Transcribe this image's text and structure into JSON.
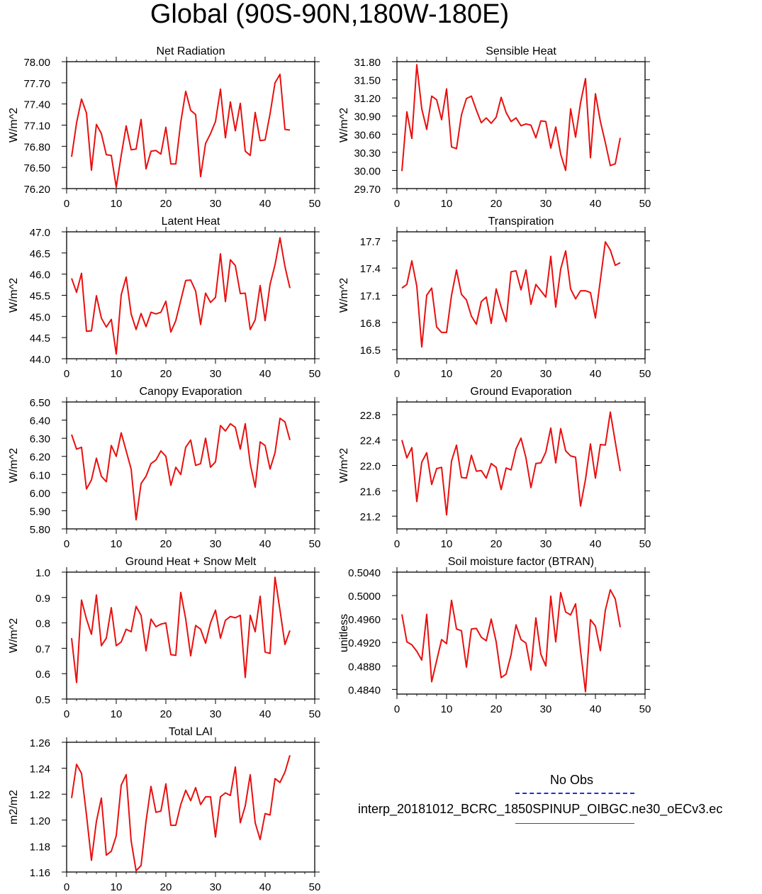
{
  "title": "Global (90S-90N,180W-180E)",
  "legend": {
    "obs_label": "No Obs",
    "model_label": "interp_20181012_BCRC_1850SPINUP_OIBGC.ne30_oECv3.ec",
    "obs_color": "#1f2fd6",
    "model_color": "#e8100f"
  },
  "chart_data": [
    {
      "type": "line",
      "title": "Net Radiation",
      "ylabel": "W/m^2",
      "xlim": [
        0,
        50
      ],
      "xticks": [
        "0",
        "10",
        "20",
        "30",
        "40",
        "50"
      ],
      "ylim": [
        76.2,
        78.0
      ],
      "yticks": [
        "76.20",
        "76.50",
        "76.80",
        "77.10",
        "77.40",
        "77.70",
        "78.00"
      ],
      "x": [
        1,
        2,
        3,
        4,
        5,
        6,
        7,
        8,
        9,
        10,
        11,
        12,
        13,
        14,
        15,
        16,
        17,
        18,
        19,
        20,
        21,
        22,
        23,
        24,
        25,
        26,
        27,
        28,
        29,
        30,
        31,
        32,
        33,
        34,
        35,
        36,
        37,
        38,
        39,
        40,
        41,
        42,
        43,
        44,
        45
      ],
      "series": [
        {
          "values": [
            76.65,
            77.13,
            77.47,
            77.27,
            76.46,
            77.11,
            76.98,
            76.68,
            76.67,
            76.22,
            76.67,
            77.09,
            76.75,
            76.76,
            77.18,
            76.48,
            76.73,
            76.74,
            76.69,
            77.07,
            76.55,
            76.55,
            77.14,
            77.58,
            77.31,
            77.25,
            76.37,
            76.84,
            76.98,
            77.15,
            77.61,
            76.92,
            77.43,
            77.02,
            77.41,
            76.73,
            76.67,
            77.28,
            76.88,
            76.89,
            77.26,
            77.7,
            77.82,
            77.04,
            77.03
          ]
        }
      ]
    },
    {
      "type": "line",
      "title": "Sensible Heat",
      "ylabel": "W/m^2",
      "xlim": [
        0,
        50
      ],
      "xticks": [
        "0",
        "10",
        "20",
        "30",
        "40",
        "50"
      ],
      "ylim": [
        29.7,
        31.8
      ],
      "yticks": [
        "29.70",
        "30.00",
        "30.30",
        "30.60",
        "30.90",
        "31.20",
        "31.50",
        "31.80"
      ],
      "x": [
        1,
        2,
        3,
        4,
        5,
        6,
        7,
        8,
        9,
        10,
        11,
        12,
        13,
        14,
        15,
        16,
        17,
        18,
        19,
        20,
        21,
        22,
        23,
        24,
        25,
        26,
        27,
        28,
        29,
        30,
        31,
        32,
        33,
        34,
        35,
        36,
        37,
        38,
        39,
        40,
        41,
        42,
        43,
        44,
        45
      ],
      "series": [
        {
          "values": [
            29.99,
            30.97,
            30.53,
            31.75,
            31.02,
            30.68,
            31.23,
            31.17,
            30.84,
            31.35,
            30.39,
            30.36,
            30.92,
            31.19,
            31.23,
            31.0,
            30.79,
            30.87,
            30.78,
            30.88,
            31.21,
            30.96,
            30.81,
            30.87,
            30.74,
            30.77,
            30.75,
            30.54,
            30.82,
            30.81,
            30.37,
            30.72,
            30.27,
            30.0,
            31.02,
            30.55,
            31.12,
            31.52,
            30.21,
            31.27,
            30.81,
            30.46,
            30.08,
            30.11,
            30.54
          ]
        }
      ]
    },
    {
      "type": "line",
      "title": "Latent Heat",
      "ylabel": "W/m^2",
      "xlim": [
        0,
        50
      ],
      "xticks": [
        "0",
        "10",
        "20",
        "30",
        "40",
        "50"
      ],
      "ylim": [
        44.0,
        47.0
      ],
      "yticks": [
        "44.0",
        "44.5",
        "45.0",
        "45.5",
        "46.0",
        "46.5",
        "47.0"
      ],
      "x": [
        1,
        2,
        3,
        4,
        5,
        6,
        7,
        8,
        9,
        10,
        11,
        12,
        13,
        14,
        15,
        16,
        17,
        18,
        19,
        20,
        21,
        22,
        23,
        24,
        25,
        26,
        27,
        28,
        29,
        30,
        31,
        32,
        33,
        34,
        35,
        36,
        37,
        38,
        39,
        40,
        41,
        42,
        43,
        44,
        45
      ],
      "series": [
        {
          "values": [
            45.9,
            45.57,
            46.02,
            44.65,
            44.66,
            45.49,
            44.96,
            44.75,
            44.93,
            44.11,
            45.51,
            45.93,
            45.06,
            44.69,
            45.07,
            44.76,
            45.1,
            45.06,
            45.1,
            45.36,
            44.63,
            44.9,
            45.38,
            45.85,
            45.86,
            45.6,
            44.81,
            45.55,
            45.33,
            45.45,
            46.48,
            45.35,
            46.34,
            46.2,
            45.54,
            45.55,
            44.69,
            44.92,
            45.73,
            44.9,
            45.76,
            46.22,
            46.86,
            46.18,
            45.67
          ]
        }
      ]
    },
    {
      "type": "line",
      "title": "Transpiration",
      "ylabel": "W/m^2",
      "xlim": [
        0,
        50
      ],
      "xticks": [
        "0",
        "10",
        "20",
        "30",
        "40",
        "50"
      ],
      "ylim": [
        16.4,
        17.8
      ],
      "yticks": [
        "16.5",
        "16.8",
        "17.1",
        "17.4",
        "17.7"
      ],
      "x": [
        1,
        2,
        3,
        4,
        5,
        6,
        7,
        8,
        9,
        10,
        11,
        12,
        13,
        14,
        15,
        16,
        17,
        18,
        19,
        20,
        21,
        22,
        23,
        24,
        25,
        26,
        27,
        28,
        29,
        30,
        31,
        32,
        33,
        34,
        35,
        36,
        37,
        38,
        39,
        40,
        41,
        42,
        43,
        44,
        45
      ],
      "series": [
        {
          "values": [
            17.18,
            17.22,
            17.48,
            17.2,
            16.53,
            17.1,
            17.18,
            16.75,
            16.69,
            16.69,
            17.1,
            17.38,
            17.11,
            17.05,
            16.87,
            16.78,
            17.03,
            17.08,
            16.79,
            17.17,
            16.97,
            16.81,
            17.36,
            17.37,
            17.16,
            17.38,
            17.0,
            17.22,
            17.15,
            17.08,
            17.53,
            16.97,
            17.39,
            17.59,
            17.17,
            17.06,
            17.15,
            17.15,
            17.13,
            16.85,
            17.27,
            17.69,
            17.6,
            17.43,
            17.46
          ]
        }
      ]
    },
    {
      "type": "line",
      "title": "Canopy Evaporation",
      "ylabel": "W/m^2",
      "xlim": [
        0,
        50
      ],
      "xticks": [
        "0",
        "10",
        "20",
        "30",
        "40",
        "50"
      ],
      "ylim": [
        5.8,
        6.5
      ],
      "yticks": [
        "5.80",
        "5.90",
        "6.00",
        "6.10",
        "6.20",
        "6.30",
        "6.40",
        "6.50"
      ],
      "x": [
        1,
        2,
        3,
        4,
        5,
        6,
        7,
        8,
        9,
        10,
        11,
        12,
        13,
        14,
        15,
        16,
        17,
        18,
        19,
        20,
        21,
        22,
        23,
        24,
        25,
        26,
        27,
        28,
        29,
        30,
        31,
        32,
        33,
        34,
        35,
        36,
        37,
        38,
        39,
        40,
        41,
        42,
        43,
        44,
        45
      ],
      "series": [
        {
          "values": [
            6.32,
            6.24,
            6.25,
            6.02,
            6.07,
            6.19,
            6.09,
            6.06,
            6.26,
            6.2,
            6.33,
            6.23,
            6.13,
            5.85,
            6.05,
            6.09,
            6.16,
            6.18,
            6.23,
            6.2,
            6.04,
            6.14,
            6.1,
            6.25,
            6.29,
            6.15,
            6.16,
            6.3,
            6.14,
            6.17,
            6.37,
            6.34,
            6.38,
            6.36,
            6.24,
            6.38,
            6.16,
            6.03,
            6.28,
            6.26,
            6.13,
            6.22,
            6.41,
            6.39,
            6.29
          ]
        }
      ]
    },
    {
      "type": "line",
      "title": "Ground Evaporation",
      "ylabel": "W/m^2",
      "xlim": [
        0,
        50
      ],
      "xticks": [
        "0",
        "10",
        "20",
        "30",
        "40",
        "50"
      ],
      "ylim": [
        21.0,
        23.0
      ],
      "yticks": [
        "21.2",
        "21.6",
        "22.0",
        "22.4",
        "22.8"
      ],
      "x": [
        1,
        2,
        3,
        4,
        5,
        6,
        7,
        8,
        9,
        10,
        11,
        12,
        13,
        14,
        15,
        16,
        17,
        18,
        19,
        20,
        21,
        22,
        23,
        24,
        25,
        26,
        27,
        28,
        29,
        30,
        31,
        32,
        33,
        34,
        35,
        36,
        37,
        38,
        39,
        40,
        41,
        42,
        43,
        44,
        45
      ],
      "series": [
        {
          "values": [
            22.4,
            22.12,
            22.28,
            21.43,
            22.05,
            22.2,
            21.7,
            21.95,
            21.97,
            21.22,
            22.07,
            22.32,
            21.81,
            21.8,
            22.16,
            21.91,
            21.92,
            21.8,
            22.03,
            21.97,
            21.62,
            21.96,
            21.93,
            22.26,
            22.43,
            22.12,
            21.65,
            22.03,
            22.04,
            22.21,
            22.59,
            22.04,
            22.58,
            22.23,
            22.15,
            22.13,
            21.36,
            21.78,
            22.34,
            21.8,
            22.33,
            22.32,
            22.84,
            22.37,
            21.91
          ]
        }
      ]
    },
    {
      "type": "line",
      "title": "Ground Heat + Snow Melt",
      "ylabel": "W/m^2",
      "xlim": [
        0,
        50
      ],
      "xticks": [
        "0",
        "10",
        "20",
        "30",
        "40",
        "50"
      ],
      "ylim": [
        0.5,
        1.0
      ],
      "yticks": [
        "0.5",
        "0.6",
        "0.7",
        "0.8",
        "0.9",
        "1.0"
      ],
      "x": [
        1,
        2,
        3,
        4,
        5,
        6,
        7,
        8,
        9,
        10,
        11,
        12,
        13,
        14,
        15,
        16,
        17,
        18,
        19,
        20,
        21,
        22,
        23,
        24,
        25,
        26,
        27,
        28,
        29,
        30,
        31,
        32,
        33,
        34,
        35,
        36,
        37,
        38,
        39,
        40,
        41,
        42,
        43,
        44,
        45
      ],
      "series": [
        {
          "values": [
            0.74,
            0.565,
            0.89,
            0.815,
            0.755,
            0.91,
            0.71,
            0.74,
            0.86,
            0.71,
            0.725,
            0.775,
            0.765,
            0.865,
            0.83,
            0.69,
            0.815,
            0.785,
            0.795,
            0.8,
            0.675,
            0.672,
            0.92,
            0.815,
            0.67,
            0.79,
            0.775,
            0.72,
            0.8,
            0.85,
            0.74,
            0.81,
            0.825,
            0.82,
            0.83,
            0.585,
            0.83,
            0.765,
            0.905,
            0.685,
            0.68,
            0.98,
            0.85,
            0.715,
            0.77
          ]
        }
      ]
    },
    {
      "type": "line",
      "title": "Soil moisture factor (BTRAN)",
      "ylabel": "unitless",
      "xlim": [
        0,
        50
      ],
      "xticks": [
        "0",
        "10",
        "20",
        "30",
        "40",
        "50"
      ],
      "ylim": [
        0.4832,
        0.504
      ],
      "yticks": [
        "0.4840",
        "0.4880",
        "0.4920",
        "0.4960",
        "0.5000",
        "0.5040"
      ],
      "x": [
        1,
        2,
        3,
        4,
        5,
        6,
        7,
        8,
        9,
        10,
        11,
        12,
        13,
        14,
        15,
        16,
        17,
        18,
        19,
        20,
        21,
        22,
        23,
        24,
        25,
        26,
        27,
        28,
        29,
        30,
        31,
        32,
        33,
        34,
        35,
        36,
        37,
        38,
        39,
        40,
        41,
        42,
        43,
        44,
        45
      ],
      "series": [
        {
          "values": [
            0.4968,
            0.4921,
            0.4916,
            0.4905,
            0.489,
            0.4968,
            0.4853,
            0.4889,
            0.4925,
            0.4918,
            0.4992,
            0.4943,
            0.494,
            0.4878,
            0.4943,
            0.4944,
            0.4929,
            0.4923,
            0.496,
            0.4921,
            0.486,
            0.4866,
            0.4899,
            0.495,
            0.4925,
            0.4919,
            0.4873,
            0.4962,
            0.49,
            0.488,
            0.4999,
            0.4921,
            0.5005,
            0.4972,
            0.4967,
            0.4986,
            0.4906,
            0.4836,
            0.4959,
            0.4948,
            0.4906,
            0.4975,
            0.501,
            0.4994,
            0.4946
          ]
        }
      ]
    },
    {
      "type": "line",
      "title": "Total LAI",
      "ylabel": "m2/m2",
      "xlim": [
        0,
        50
      ],
      "xticks": [
        "0",
        "10",
        "20",
        "30",
        "40",
        "50"
      ],
      "ylim": [
        1.16,
        1.26
      ],
      "yticks": [
        "1.16",
        "1.18",
        "1.20",
        "1.22",
        "1.24",
        "1.26"
      ],
      "x": [
        1,
        2,
        3,
        4,
        5,
        6,
        7,
        8,
        9,
        10,
        11,
        12,
        13,
        14,
        15,
        16,
        17,
        18,
        19,
        20,
        21,
        22,
        23,
        24,
        25,
        26,
        27,
        28,
        29,
        30,
        31,
        32,
        33,
        34,
        35,
        36,
        37,
        38,
        39,
        40,
        41,
        42,
        43,
        44,
        45
      ],
      "series": [
        {
          "values": [
            1.217,
            1.243,
            1.236,
            1.204,
            1.169,
            1.199,
            1.217,
            1.173,
            1.176,
            1.188,
            1.227,
            1.235,
            1.184,
            1.161,
            1.165,
            1.199,
            1.226,
            1.206,
            1.207,
            1.228,
            1.196,
            1.196,
            1.212,
            1.223,
            1.215,
            1.225,
            1.212,
            1.218,
            1.218,
            1.187,
            1.218,
            1.221,
            1.219,
            1.241,
            1.198,
            1.211,
            1.235,
            1.198,
            1.185,
            1.205,
            1.204,
            1.232,
            1.229,
            1.237,
            1.25
          ]
        }
      ]
    }
  ]
}
